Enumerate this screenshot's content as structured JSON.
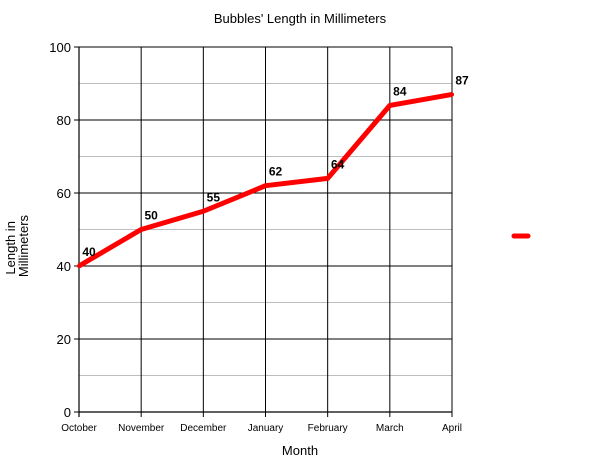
{
  "chart_data": {
    "type": "line",
    "title": "Bubbles' Length in Millimeters",
    "xlabel": "Month",
    "ylabel": "Length in Millimeters",
    "ylabel_lines": [
      "Length in",
      "Millimeters"
    ],
    "categories": [
      "October",
      "November",
      "December",
      "January",
      "February",
      "March",
      "April"
    ],
    "series": [
      {
        "values": [
          40,
          50,
          55,
          62,
          64,
          84,
          87
        ],
        "color": "#ff0000"
      }
    ],
    "ylim": [
      0,
      100
    ],
    "yticks": [
      0,
      20,
      40,
      60,
      80,
      100
    ],
    "minor_yticks": [
      10,
      30,
      50,
      70,
      90
    ],
    "grid": true,
    "data_labels": true,
    "legend": {
      "position": "right",
      "entries": [
        {
          "color": "#ff0000"
        }
      ]
    }
  }
}
